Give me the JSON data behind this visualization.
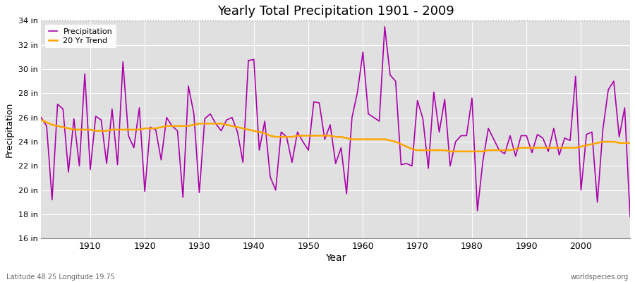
{
  "title": "Yearly Total Precipitation 1901 - 2009",
  "xlabel": "Year",
  "ylabel": "Precipitation",
  "subtitle_left": "Latitude 48.25 Longitude 19.75",
  "subtitle_right": "worldspecies.org",
  "ylim": [
    16,
    34
  ],
  "yticks": [
    16,
    18,
    20,
    22,
    24,
    26,
    28,
    30,
    32,
    34
  ],
  "ytick_labels": [
    "16 in",
    "18 in",
    "20 in",
    "22 in",
    "24 in",
    "26 in",
    "28 in",
    "30 in",
    "32 in",
    "34 in"
  ],
  "xlim": [
    1901,
    2009
  ],
  "xticks": [
    1910,
    1920,
    1930,
    1940,
    1950,
    1960,
    1970,
    1980,
    1990,
    2000
  ],
  "precip_color": "#aa00aa",
  "trend_color": "#FFA500",
  "fig_bg_color": "#ffffff",
  "plot_bg_color": "#e0e0e0",
  "grid_color": "#ffffff",
  "dotted_line_color": "#888888",
  "dotted_line_y": 34,
  "years": [
    1901,
    1902,
    1903,
    1904,
    1905,
    1906,
    1907,
    1908,
    1909,
    1910,
    1911,
    1912,
    1913,
    1914,
    1915,
    1916,
    1917,
    1918,
    1919,
    1920,
    1921,
    1922,
    1923,
    1924,
    1925,
    1926,
    1927,
    1928,
    1929,
    1930,
    1931,
    1932,
    1933,
    1934,
    1935,
    1936,
    1937,
    1938,
    1939,
    1940,
    1941,
    1942,
    1943,
    1944,
    1945,
    1946,
    1947,
    1948,
    1949,
    1950,
    1951,
    1952,
    1953,
    1954,
    1955,
    1956,
    1957,
    1958,
    1959,
    1960,
    1961,
    1962,
    1963,
    1964,
    1965,
    1966,
    1967,
    1968,
    1969,
    1970,
    1971,
    1972,
    1973,
    1974,
    1975,
    1976,
    1977,
    1978,
    1979,
    1980,
    1981,
    1982,
    1983,
    1984,
    1985,
    1986,
    1987,
    1988,
    1989,
    1990,
    1991,
    1992,
    1993,
    1994,
    1995,
    1996,
    1997,
    1998,
    1999,
    2000,
    2001,
    2002,
    2003,
    2004,
    2005,
    2006,
    2007,
    2008,
    2009
  ],
  "precip": [
    26.0,
    25.3,
    19.2,
    27.1,
    26.7,
    21.5,
    25.9,
    22.0,
    29.6,
    21.7,
    26.1,
    25.8,
    22.2,
    26.7,
    22.1,
    30.6,
    24.5,
    23.5,
    26.8,
    19.9,
    25.2,
    25.0,
    22.5,
    26.0,
    25.3,
    24.9,
    19.4,
    28.6,
    26.3,
    19.8,
    25.9,
    26.3,
    25.5,
    24.9,
    25.8,
    26.0,
    24.8,
    22.3,
    30.7,
    30.8,
    23.3,
    25.7,
    21.1,
    20.0,
    24.8,
    24.4,
    22.3,
    24.8,
    24.0,
    23.3,
    27.3,
    27.2,
    24.2,
    25.4,
    22.2,
    23.5,
    19.7,
    26.0,
    28.1,
    31.4,
    26.3,
    26.0,
    25.7,
    33.5,
    29.5,
    29.0,
    22.1,
    22.2,
    22.0,
    27.4,
    25.9,
    21.8,
    28.1,
    24.8,
    27.5,
    22.0,
    24.0,
    24.5,
    24.5,
    27.6,
    18.3,
    22.4,
    25.1,
    24.2,
    23.3,
    23.0,
    24.5,
    22.8,
    24.5,
    24.5,
    23.1,
    24.6,
    24.3,
    23.2,
    25.1,
    22.9,
    24.3,
    24.1,
    29.4,
    20.0,
    24.6,
    24.8,
    19.0,
    25.0,
    28.3,
    29.0,
    24.4,
    26.8,
    17.8
  ],
  "trend": [
    25.8,
    25.6,
    25.4,
    25.3,
    25.2,
    25.1,
    25.0,
    25.0,
    25.0,
    25.0,
    24.9,
    24.9,
    24.9,
    25.0,
    25.0,
    25.0,
    25.0,
    25.0,
    25.0,
    25.1,
    25.1,
    25.1,
    25.2,
    25.3,
    25.3,
    25.3,
    25.3,
    25.3,
    25.4,
    25.5,
    25.5,
    25.5,
    25.5,
    25.5,
    25.4,
    25.3,
    25.2,
    25.1,
    25.0,
    24.9,
    24.8,
    24.7,
    24.5,
    24.4,
    24.4,
    24.4,
    24.4,
    24.5,
    24.5,
    24.5,
    24.5,
    24.5,
    24.5,
    24.5,
    24.4,
    24.4,
    24.3,
    24.2,
    24.2,
    24.2,
    24.2,
    24.2,
    24.2,
    24.2,
    24.1,
    24.0,
    23.8,
    23.6,
    23.4,
    23.3,
    23.3,
    23.3,
    23.3,
    23.3,
    23.3,
    23.2,
    23.2,
    23.2,
    23.2,
    23.2,
    23.2,
    23.2,
    23.3,
    23.3,
    23.3,
    23.3,
    23.3,
    23.4,
    23.5,
    23.5,
    23.5,
    23.5,
    23.5,
    23.5,
    23.5,
    23.5,
    23.5,
    23.5,
    23.5,
    23.6,
    23.7,
    23.8,
    23.9,
    24.0,
    24.0,
    24.0,
    23.9,
    23.9,
    23.9
  ]
}
